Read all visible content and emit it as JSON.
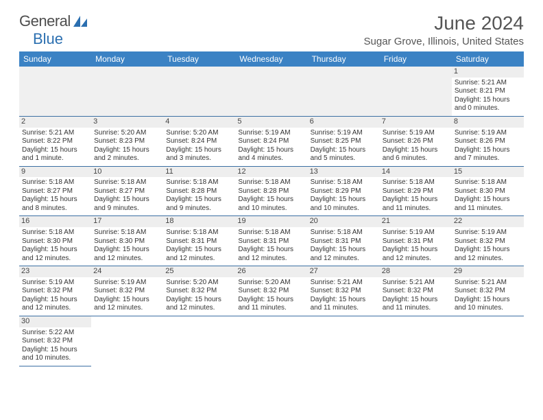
{
  "brand": {
    "part1": "General",
    "part2": "Blue"
  },
  "title": "June 2024",
  "location": "Sugar Grove, Illinois, United States",
  "colors": {
    "header_bg": "#3b82c4",
    "header_text": "#ffffff",
    "rule": "#3b6fa3",
    "daynum_bg": "#eeeeee",
    "text": "#333333",
    "logo_gray": "#4d4d4d",
    "logo_blue": "#2b6fb0"
  },
  "daynames": [
    "Sunday",
    "Monday",
    "Tuesday",
    "Wednesday",
    "Thursday",
    "Friday",
    "Saturday"
  ],
  "weeks": [
    [
      null,
      null,
      null,
      null,
      null,
      null,
      {
        "n": "1",
        "sr": "Sunrise: 5:21 AM",
        "ss": "Sunset: 8:21 PM",
        "d1": "Daylight: 15 hours",
        "d2": "and 0 minutes."
      }
    ],
    [
      {
        "n": "2",
        "sr": "Sunrise: 5:21 AM",
        "ss": "Sunset: 8:22 PM",
        "d1": "Daylight: 15 hours",
        "d2": "and 1 minute."
      },
      {
        "n": "3",
        "sr": "Sunrise: 5:20 AM",
        "ss": "Sunset: 8:23 PM",
        "d1": "Daylight: 15 hours",
        "d2": "and 2 minutes."
      },
      {
        "n": "4",
        "sr": "Sunrise: 5:20 AM",
        "ss": "Sunset: 8:24 PM",
        "d1": "Daylight: 15 hours",
        "d2": "and 3 minutes."
      },
      {
        "n": "5",
        "sr": "Sunrise: 5:19 AM",
        "ss": "Sunset: 8:24 PM",
        "d1": "Daylight: 15 hours",
        "d2": "and 4 minutes."
      },
      {
        "n": "6",
        "sr": "Sunrise: 5:19 AM",
        "ss": "Sunset: 8:25 PM",
        "d1": "Daylight: 15 hours",
        "d2": "and 5 minutes."
      },
      {
        "n": "7",
        "sr": "Sunrise: 5:19 AM",
        "ss": "Sunset: 8:26 PM",
        "d1": "Daylight: 15 hours",
        "d2": "and 6 minutes."
      },
      {
        "n": "8",
        "sr": "Sunrise: 5:19 AM",
        "ss": "Sunset: 8:26 PM",
        "d1": "Daylight: 15 hours",
        "d2": "and 7 minutes."
      }
    ],
    [
      {
        "n": "9",
        "sr": "Sunrise: 5:18 AM",
        "ss": "Sunset: 8:27 PM",
        "d1": "Daylight: 15 hours",
        "d2": "and 8 minutes."
      },
      {
        "n": "10",
        "sr": "Sunrise: 5:18 AM",
        "ss": "Sunset: 8:27 PM",
        "d1": "Daylight: 15 hours",
        "d2": "and 9 minutes."
      },
      {
        "n": "11",
        "sr": "Sunrise: 5:18 AM",
        "ss": "Sunset: 8:28 PM",
        "d1": "Daylight: 15 hours",
        "d2": "and 9 minutes."
      },
      {
        "n": "12",
        "sr": "Sunrise: 5:18 AM",
        "ss": "Sunset: 8:28 PM",
        "d1": "Daylight: 15 hours",
        "d2": "and 10 minutes."
      },
      {
        "n": "13",
        "sr": "Sunrise: 5:18 AM",
        "ss": "Sunset: 8:29 PM",
        "d1": "Daylight: 15 hours",
        "d2": "and 10 minutes."
      },
      {
        "n": "14",
        "sr": "Sunrise: 5:18 AM",
        "ss": "Sunset: 8:29 PM",
        "d1": "Daylight: 15 hours",
        "d2": "and 11 minutes."
      },
      {
        "n": "15",
        "sr": "Sunrise: 5:18 AM",
        "ss": "Sunset: 8:30 PM",
        "d1": "Daylight: 15 hours",
        "d2": "and 11 minutes."
      }
    ],
    [
      {
        "n": "16",
        "sr": "Sunrise: 5:18 AM",
        "ss": "Sunset: 8:30 PM",
        "d1": "Daylight: 15 hours",
        "d2": "and 12 minutes."
      },
      {
        "n": "17",
        "sr": "Sunrise: 5:18 AM",
        "ss": "Sunset: 8:30 PM",
        "d1": "Daylight: 15 hours",
        "d2": "and 12 minutes."
      },
      {
        "n": "18",
        "sr": "Sunrise: 5:18 AM",
        "ss": "Sunset: 8:31 PM",
        "d1": "Daylight: 15 hours",
        "d2": "and 12 minutes."
      },
      {
        "n": "19",
        "sr": "Sunrise: 5:18 AM",
        "ss": "Sunset: 8:31 PM",
        "d1": "Daylight: 15 hours",
        "d2": "and 12 minutes."
      },
      {
        "n": "20",
        "sr": "Sunrise: 5:18 AM",
        "ss": "Sunset: 8:31 PM",
        "d1": "Daylight: 15 hours",
        "d2": "and 12 minutes."
      },
      {
        "n": "21",
        "sr": "Sunrise: 5:19 AM",
        "ss": "Sunset: 8:31 PM",
        "d1": "Daylight: 15 hours",
        "d2": "and 12 minutes."
      },
      {
        "n": "22",
        "sr": "Sunrise: 5:19 AM",
        "ss": "Sunset: 8:32 PM",
        "d1": "Daylight: 15 hours",
        "d2": "and 12 minutes."
      }
    ],
    [
      {
        "n": "23",
        "sr": "Sunrise: 5:19 AM",
        "ss": "Sunset: 8:32 PM",
        "d1": "Daylight: 15 hours",
        "d2": "and 12 minutes."
      },
      {
        "n": "24",
        "sr": "Sunrise: 5:19 AM",
        "ss": "Sunset: 8:32 PM",
        "d1": "Daylight: 15 hours",
        "d2": "and 12 minutes."
      },
      {
        "n": "25",
        "sr": "Sunrise: 5:20 AM",
        "ss": "Sunset: 8:32 PM",
        "d1": "Daylight: 15 hours",
        "d2": "and 12 minutes."
      },
      {
        "n": "26",
        "sr": "Sunrise: 5:20 AM",
        "ss": "Sunset: 8:32 PM",
        "d1": "Daylight: 15 hours",
        "d2": "and 11 minutes."
      },
      {
        "n": "27",
        "sr": "Sunrise: 5:21 AM",
        "ss": "Sunset: 8:32 PM",
        "d1": "Daylight: 15 hours",
        "d2": "and 11 minutes."
      },
      {
        "n": "28",
        "sr": "Sunrise: 5:21 AM",
        "ss": "Sunset: 8:32 PM",
        "d1": "Daylight: 15 hours",
        "d2": "and 11 minutes."
      },
      {
        "n": "29",
        "sr": "Sunrise: 5:21 AM",
        "ss": "Sunset: 8:32 PM",
        "d1": "Daylight: 15 hours",
        "d2": "and 10 minutes."
      }
    ],
    [
      {
        "n": "30",
        "sr": "Sunrise: 5:22 AM",
        "ss": "Sunset: 8:32 PM",
        "d1": "Daylight: 15 hours",
        "d2": "and 10 minutes."
      },
      null,
      null,
      null,
      null,
      null,
      null
    ]
  ]
}
